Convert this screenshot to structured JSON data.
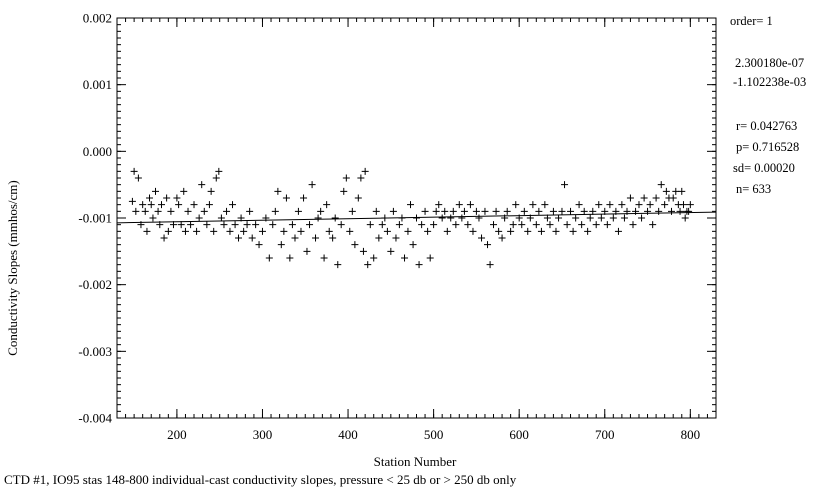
{
  "caption": "CTD #1, IO95 stas 148-800 individual-cast conductivity slopes, pressure < 25 db or > 250 db only",
  "stats": {
    "order": "order= 1",
    "coef1": "2.300180e-07",
    "coef2": "-1.102238e-03",
    "r": "r= 0.042763",
    "p": "p= 0.716528",
    "sd": "sd= 0.00020",
    "n": "n=  633"
  },
  "chart_data": {
    "type": "scatter",
    "title": "",
    "xlabel": "Station Number",
    "ylabel": "Conductivity Slopes (mmhos/cm)",
    "xlim": [
      130,
      830
    ],
    "ylim": [
      -0.004,
      0.002
    ],
    "xticks": [
      200,
      300,
      400,
      500,
      600,
      700,
      800
    ],
    "yticks": [
      0.002,
      0.001,
      0.0,
      -0.001,
      -0.002,
      -0.003,
      -0.004
    ],
    "ytick_labels": [
      "0.002",
      "0.001",
      "0.000",
      "-0.001",
      "-0.002",
      "-0.003",
      "-0.004"
    ],
    "grid": false,
    "marker": "+",
    "fit_line": {
      "slope": 2.30018e-07,
      "intercept": -0.001102238
    },
    "points": [
      [
        148,
        -0.00075
      ],
      [
        150,
        -0.0003
      ],
      [
        152,
        -0.0009
      ],
      [
        155,
        -0.0004
      ],
      [
        158,
        -0.0011
      ],
      [
        160,
        -0.0008
      ],
      [
        163,
        -0.0009
      ],
      [
        165,
        -0.0012
      ],
      [
        168,
        -0.0007
      ],
      [
        170,
        -0.0008
      ],
      [
        172,
        -0.001
      ],
      [
        175,
        -0.0006
      ],
      [
        178,
        -0.0009
      ],
      [
        180,
        -0.0011
      ],
      [
        182,
        -0.0008
      ],
      [
        185,
        -0.0013
      ],
      [
        188,
        -0.0007
      ],
      [
        190,
        -0.0012
      ],
      [
        193,
        -0.0009
      ],
      [
        196,
        -0.0011
      ],
      [
        200,
        -0.0007
      ],
      [
        202,
        -0.0008
      ],
      [
        205,
        -0.0011
      ],
      [
        208,
        -0.0006
      ],
      [
        210,
        -0.0012
      ],
      [
        213,
        -0.0009
      ],
      [
        216,
        -0.0011
      ],
      [
        220,
        -0.0008
      ],
      [
        223,
        -0.0012
      ],
      [
        226,
        -0.001
      ],
      [
        229,
        -0.0005
      ],
      [
        232,
        -0.0009
      ],
      [
        235,
        -0.0011
      ],
      [
        238,
        -0.0008
      ],
      [
        240,
        -0.0006
      ],
      [
        243,
        -0.0012
      ],
      [
        246,
        -0.0004
      ],
      [
        249,
        -0.0003
      ],
      [
        252,
        -0.001
      ],
      [
        255,
        -0.0011
      ],
      [
        258,
        -0.0009
      ],
      [
        262,
        -0.0012
      ],
      [
        265,
        -0.0008
      ],
      [
        268,
        -0.0011
      ],
      [
        272,
        -0.0013
      ],
      [
        275,
        -0.001
      ],
      [
        278,
        -0.0012
      ],
      [
        282,
        -0.0011
      ],
      [
        285,
        -0.0009
      ],
      [
        288,
        -0.0013
      ],
      [
        292,
        -0.0011
      ],
      [
        296,
        -0.0014
      ],
      [
        300,
        -0.0012
      ],
      [
        304,
        -0.001
      ],
      [
        308,
        -0.0016
      ],
      [
        312,
        -0.0011
      ],
      [
        315,
        -0.0009
      ],
      [
        318,
        -0.0006
      ],
      [
        322,
        -0.0014
      ],
      [
        325,
        -0.0012
      ],
      [
        328,
        -0.0007
      ],
      [
        332,
        -0.0016
      ],
      [
        335,
        -0.0011
      ],
      [
        338,
        -0.0013
      ],
      [
        342,
        -0.0009
      ],
      [
        345,
        -0.0012
      ],
      [
        348,
        -0.0007
      ],
      [
        352,
        -0.0015
      ],
      [
        355,
        -0.0011
      ],
      [
        358,
        -0.0005
      ],
      [
        362,
        -0.0013
      ],
      [
        365,
        -0.001
      ],
      [
        368,
        -0.0009
      ],
      [
        372,
        -0.0016
      ],
      [
        375,
        -0.0008
      ],
      [
        378,
        -0.0012
      ],
      [
        382,
        -0.0013
      ],
      [
        385,
        -0.001
      ],
      [
        388,
        -0.0017
      ],
      [
        392,
        -0.0011
      ],
      [
        395,
        -0.0006
      ],
      [
        398,
        -0.0004
      ],
      [
        402,
        -0.0012
      ],
      [
        405,
        -0.0009
      ],
      [
        408,
        -0.0014
      ],
      [
        412,
        -0.0007
      ],
      [
        415,
        -0.0004
      ],
      [
        418,
        -0.0015
      ],
      [
        420,
        -0.0003
      ],
      [
        423,
        -0.0017
      ],
      [
        426,
        -0.0011
      ],
      [
        430,
        -0.0016
      ],
      [
        433,
        -0.0009
      ],
      [
        436,
        -0.0013
      ],
      [
        440,
        -0.0011
      ],
      [
        443,
        -0.001
      ],
      [
        446,
        -0.0012
      ],
      [
        450,
        -0.0015
      ],
      [
        453,
        -0.0009
      ],
      [
        456,
        -0.0013
      ],
      [
        460,
        -0.0011
      ],
      [
        463,
        -0.001
      ],
      [
        466,
        -0.0016
      ],
      [
        470,
        -0.0012
      ],
      [
        473,
        -0.0008
      ],
      [
        476,
        -0.0014
      ],
      [
        480,
        -0.001
      ],
      [
        483,
        -0.0017
      ],
      [
        486,
        -0.0011
      ],
      [
        490,
        -0.0009
      ],
      [
        493,
        -0.0012
      ],
      [
        496,
        -0.0016
      ],
      [
        500,
        -0.0011
      ],
      [
        503,
        -0.0009
      ],
      [
        506,
        -0.0008
      ],
      [
        510,
        -0.001
      ],
      [
        513,
        -0.0009
      ],
      [
        516,
        -0.0012
      ],
      [
        520,
        -0.001
      ],
      [
        523,
        -0.0009
      ],
      [
        526,
        -0.0011
      ],
      [
        530,
        -0.0008
      ],
      [
        533,
        -0.001
      ],
      [
        536,
        -0.0009
      ],
      [
        540,
        -0.0011
      ],
      [
        543,
        -0.0008
      ],
      [
        546,
        -0.0012
      ],
      [
        550,
        -0.0009
      ],
      [
        553,
        -0.001
      ],
      [
        556,
        -0.0013
      ],
      [
        560,
        -0.0009
      ],
      [
        563,
        -0.0014
      ],
      [
        566,
        -0.0017
      ],
      [
        570,
        -0.0011
      ],
      [
        573,
        -0.0009
      ],
      [
        576,
        -0.0012
      ],
      [
        580,
        -0.0013
      ],
      [
        583,
        -0.001
      ],
      [
        586,
        -0.0009
      ],
      [
        590,
        -0.0012
      ],
      [
        593,
        -0.0011
      ],
      [
        596,
        -0.0008
      ],
      [
        600,
        -0.001
      ],
      [
        603,
        -0.0011
      ],
      [
        606,
        -0.0009
      ],
      [
        610,
        -0.0012
      ],
      [
        613,
        -0.001
      ],
      [
        616,
        -0.0008
      ],
      [
        620,
        -0.0011
      ],
      [
        623,
        -0.0009
      ],
      [
        626,
        -0.0012
      ],
      [
        630,
        -0.0008
      ],
      [
        633,
        -0.001
      ],
      [
        636,
        -0.0011
      ],
      [
        640,
        -0.0009
      ],
      [
        643,
        -0.0012
      ],
      [
        646,
        -0.001
      ],
      [
        650,
        -0.0009
      ],
      [
        653,
        -0.0005
      ],
      [
        656,
        -0.0011
      ],
      [
        660,
        -0.0009
      ],
      [
        663,
        -0.0012
      ],
      [
        666,
        -0.001
      ],
      [
        670,
        -0.0008
      ],
      [
        673,
        -0.0011
      ],
      [
        676,
        -0.0009
      ],
      [
        680,
        -0.0012
      ],
      [
        683,
        -0.001
      ],
      [
        686,
        -0.0009
      ],
      [
        690,
        -0.0011
      ],
      [
        693,
        -0.0008
      ],
      [
        696,
        -0.001
      ],
      [
        700,
        -0.0009
      ],
      [
        703,
        -0.0011
      ],
      [
        706,
        -0.0008
      ],
      [
        710,
        -0.001
      ],
      [
        713,
        -0.0009
      ],
      [
        716,
        -0.0012
      ],
      [
        720,
        -0.0008
      ],
      [
        723,
        -0.001
      ],
      [
        726,
        -0.0009
      ],
      [
        730,
        -0.0007
      ],
      [
        733,
        -0.0011
      ],
      [
        736,
        -0.0009
      ],
      [
        740,
        -0.0008
      ],
      [
        743,
        -0.001
      ],
      [
        746,
        -0.0007
      ],
      [
        750,
        -0.0009
      ],
      [
        753,
        -0.0008
      ],
      [
        756,
        -0.0011
      ],
      [
        760,
        -0.0007
      ],
      [
        763,
        -0.0009
      ],
      [
        766,
        -0.0005
      ],
      [
        770,
        -0.0008
      ],
      [
        772,
        -0.0006
      ],
      [
        775,
        -0.0007
      ],
      [
        778,
        -0.0009
      ],
      [
        780,
        -0.0007
      ],
      [
        783,
        -0.0006
      ],
      [
        786,
        -0.0008
      ],
      [
        788,
        -0.0009
      ],
      [
        790,
        -0.0006
      ],
      [
        792,
        -0.0008
      ],
      [
        794,
        -0.001
      ],
      [
        796,
        -0.0009
      ],
      [
        798,
        -0.0009
      ],
      [
        800,
        -0.0008
      ]
    ]
  }
}
